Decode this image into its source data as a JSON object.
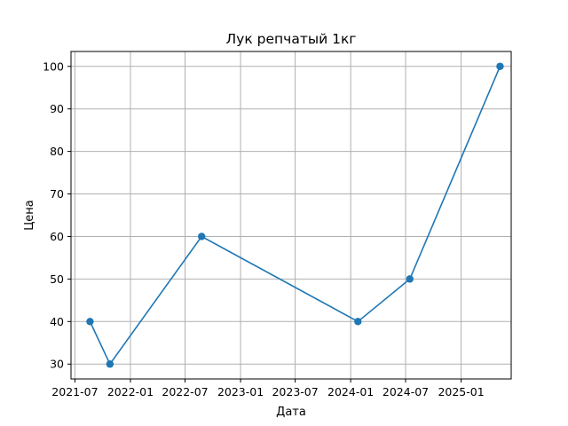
{
  "chart_data": {
    "type": "line",
    "title": "Лук репчатый 1кг",
    "xlabel": "Дата",
    "ylabel": "Цена",
    "x_ticks": [
      "2021-07",
      "2022-01",
      "2022-07",
      "2023-01",
      "2023-07",
      "2024-01",
      "2024-07",
      "2025-01"
    ],
    "y_ticks": [
      30,
      40,
      50,
      60,
      70,
      80,
      90,
      100
    ],
    "xlim": [
      "2021-06-18",
      "2025-06-16"
    ],
    "ylim": [
      26.5,
      103.5
    ],
    "grid": true,
    "series": [
      {
        "color": "#1f77b4",
        "marker": "circle",
        "points": [
          {
            "x": "2021-08-20",
            "y": 40
          },
          {
            "x": "2021-10-25",
            "y": 30
          },
          {
            "x": "2022-08-25",
            "y": 60
          },
          {
            "x": "2024-01-25",
            "y": 40
          },
          {
            "x": "2024-07-15",
            "y": 50
          },
          {
            "x": "2025-05-10",
            "y": 100
          }
        ]
      }
    ]
  }
}
